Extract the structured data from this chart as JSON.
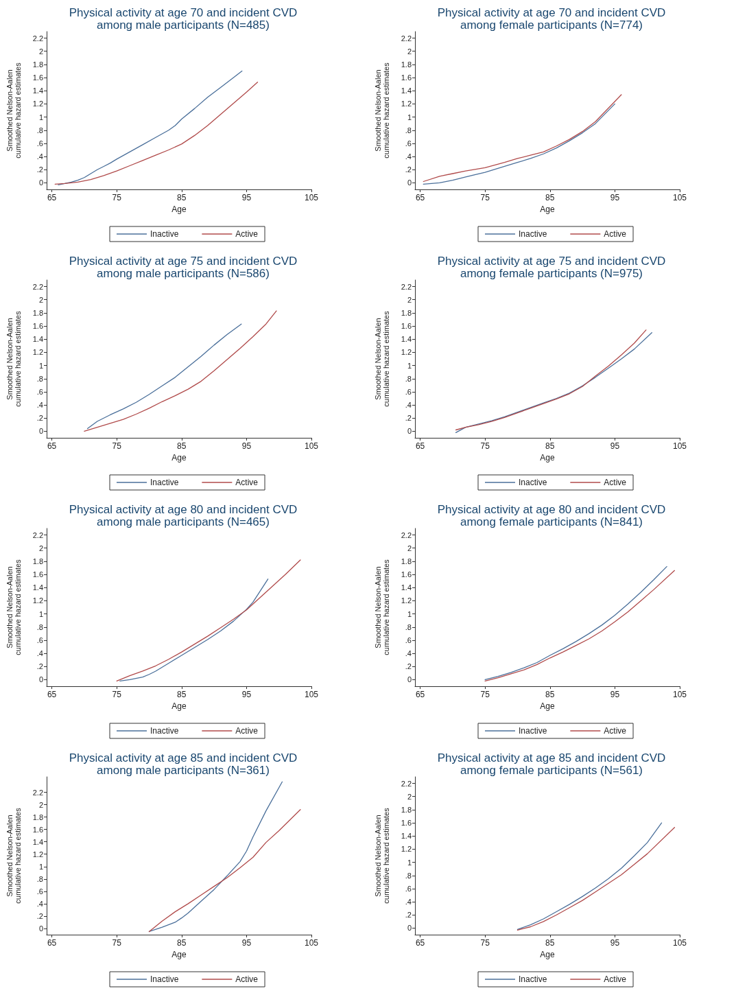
{
  "chart_data": [
    {
      "type": "line",
      "title": "Physical activity at age 70 and incident CVD\namong male participants (N=485)",
      "xlabel": "Age",
      "ylabel": "Smoothed Nelson-Aalen\ncumulative hazard estimates",
      "xlim": [
        64.2,
        105
      ],
      "xticks": [
        65,
        75,
        85,
        95,
        105
      ],
      "ylim": [
        -0.1,
        2.3
      ],
      "yticks": [
        0,
        {
          "value": 0.2,
          "label": ".2"
        },
        {
          "value": 0.4,
          "label": ".4"
        },
        {
          "value": 0.6,
          "label": ".6"
        },
        {
          "value": 0.8,
          "label": ".8"
        },
        1,
        1.2,
        1.4,
        1.6,
        1.8,
        2,
        2.2
      ],
      "grid": false,
      "legend": "bottom",
      "marker": "none",
      "line_style": "solid",
      "series": [
        {
          "name": "Inactive",
          "color": "#4a6f9a",
          "x": [
            66,
            67,
            68,
            69,
            70,
            71,
            72,
            73,
            74,
            75,
            77,
            79,
            81,
            83,
            84,
            85,
            87,
            89,
            91,
            93,
            94.3
          ],
          "values": [
            -0.03,
            -0.01,
            0.01,
            0.04,
            0.08,
            0.14,
            0.2,
            0.25,
            0.3,
            0.36,
            0.47,
            0.58,
            0.69,
            0.8,
            0.87,
            0.97,
            1.13,
            1.3,
            1.45,
            1.6,
            1.7
          ]
        },
        {
          "name": "Active",
          "color": "#b04a4a",
          "x": [
            65.5,
            67,
            69,
            71,
            73,
            75,
            77,
            79,
            81,
            83,
            85,
            87,
            89,
            91,
            93,
            95,
            96.7
          ],
          "values": [
            -0.02,
            -0.01,
            0.01,
            0.05,
            0.11,
            0.18,
            0.26,
            0.34,
            0.42,
            0.5,
            0.59,
            0.72,
            0.87,
            1.04,
            1.21,
            1.38,
            1.53
          ]
        }
      ]
    },
    {
      "type": "line",
      "title": "Physical activity at age 70 and incident CVD\namong female participants (N=774)",
      "xlabel": "Age",
      "ylabel": "Smoothed Nelson-Aalen\ncumulative hazard estimates",
      "xlim": [
        64.2,
        105
      ],
      "xticks": [
        65,
        75,
        85,
        95,
        105
      ],
      "ylim": [
        -0.1,
        2.3
      ],
      "yticks": [
        0,
        {
          "value": 0.2,
          "label": ".2"
        },
        {
          "value": 0.4,
          "label": ".4"
        },
        {
          "value": 0.6,
          "label": ".6"
        },
        {
          "value": 0.8,
          "label": ".8"
        },
        1,
        1.2,
        1.4,
        1.6,
        1.8,
        2,
        2.2
      ],
      "grid": false,
      "legend": "bottom",
      "marker": "none",
      "line_style": "solid",
      "series": [
        {
          "name": "Inactive",
          "color": "#4a6f9a",
          "x": [
            65.5,
            68,
            70,
            72,
            75,
            78,
            80,
            82,
            84,
            86,
            88,
            90,
            92,
            95
          ],
          "values": [
            -0.02,
            0,
            0.04,
            0.09,
            0.16,
            0.25,
            0.31,
            0.37,
            0.44,
            0.53,
            0.64,
            0.76,
            0.9,
            1.2
          ]
        },
        {
          "name": "Active",
          "color": "#b04a4a",
          "x": [
            65.5,
            68,
            70,
            72,
            75,
            78,
            80,
            82,
            84,
            86,
            88,
            90,
            92,
            96
          ],
          "values": [
            0.02,
            0.1,
            0.14,
            0.18,
            0.23,
            0.31,
            0.37,
            0.42,
            0.47,
            0.56,
            0.66,
            0.78,
            0.93,
            1.34
          ]
        }
      ]
    },
    {
      "type": "line",
      "title": "Physical activity at age 75 and incident CVD\namong male participants (N=586)",
      "xlabel": "Age",
      "ylabel": "Smoothed Nelson-Aalen\ncumulative hazard estimates",
      "xlim": [
        64.2,
        105
      ],
      "xticks": [
        65,
        75,
        85,
        95,
        105
      ],
      "ylim": [
        -0.1,
        2.3
      ],
      "yticks": [
        0,
        {
          "value": 0.2,
          "label": ".2"
        },
        {
          "value": 0.4,
          "label": ".4"
        },
        {
          "value": 0.6,
          "label": ".6"
        },
        {
          "value": 0.8,
          "label": ".8"
        },
        1,
        1.2,
        1.4,
        1.6,
        1.8,
        2,
        2.2
      ],
      "grid": false,
      "legend": "bottom",
      "marker": "none",
      "line_style": "solid",
      "series": [
        {
          "name": "Inactive",
          "color": "#4a6f9a",
          "x": [
            70.5,
            72,
            74,
            76,
            78,
            80,
            82,
            84,
            86,
            88,
            90,
            92,
            94.2
          ],
          "values": [
            0.04,
            0.15,
            0.25,
            0.34,
            0.44,
            0.56,
            0.69,
            0.82,
            0.98,
            1.14,
            1.31,
            1.47,
            1.63
          ]
        },
        {
          "name": "Active",
          "color": "#b04a4a",
          "x": [
            70,
            72,
            74,
            76,
            78,
            80,
            82,
            84,
            86,
            88,
            90,
            92,
            94,
            96,
            98,
            99.6
          ],
          "values": [
            0,
            0.06,
            0.12,
            0.18,
            0.26,
            0.35,
            0.45,
            0.54,
            0.64,
            0.76,
            0.92,
            1.09,
            1.26,
            1.44,
            1.63,
            1.83
          ]
        }
      ]
    },
    {
      "type": "line",
      "title": "Physical activity at age 75 and incident CVD\namong female participants (N=975)",
      "xlabel": "Age",
      "ylabel": "Smoothed Nelson-Aalen\ncumulative hazard estimates",
      "xlim": [
        64.2,
        105
      ],
      "xticks": [
        65,
        75,
        85,
        95,
        105
      ],
      "ylim": [
        -0.1,
        2.3
      ],
      "yticks": [
        0,
        {
          "value": 0.2,
          "label": ".2"
        },
        {
          "value": 0.4,
          "label": ".4"
        },
        {
          "value": 0.6,
          "label": ".6"
        },
        {
          "value": 0.8,
          "label": ".8"
        },
        1,
        1.2,
        1.4,
        1.6,
        1.8,
        2,
        2.2
      ],
      "grid": false,
      "legend": "bottom",
      "marker": "none",
      "line_style": "solid",
      "series": [
        {
          "name": "Inactive",
          "color": "#4a6f9a",
          "x": [
            70.5,
            72,
            74,
            76,
            78,
            80,
            82,
            84,
            86,
            88,
            90,
            92,
            94,
            96,
            98,
            100.7
          ],
          "values": [
            -0.02,
            0.06,
            0.11,
            0.16,
            0.22,
            0.29,
            0.36,
            0.43,
            0.5,
            0.58,
            0.69,
            0.82,
            0.96,
            1.1,
            1.25,
            1.5
          ]
        },
        {
          "name": "Active",
          "color": "#b04a4a",
          "x": [
            70.5,
            72,
            74,
            76,
            78,
            80,
            82,
            84,
            86,
            88,
            90,
            92,
            94,
            96,
            98,
            99.8
          ],
          "values": [
            0.02,
            0.06,
            0.1,
            0.15,
            0.21,
            0.28,
            0.35,
            0.42,
            0.49,
            0.57,
            0.68,
            0.84,
            0.99,
            1.16,
            1.34,
            1.54
          ]
        }
      ]
    },
    {
      "type": "line",
      "title": "Physical activity at age 80 and incident CVD\namong male participants (N=465)",
      "xlabel": "Age",
      "ylabel": "Smoothed Nelson-Aalen\ncumulative hazard estimates",
      "xlim": [
        64.2,
        105
      ],
      "xticks": [
        65,
        75,
        85,
        95,
        105
      ],
      "ylim": [
        -0.1,
        2.3
      ],
      "yticks": [
        0,
        {
          "value": 0.2,
          "label": ".2"
        },
        {
          "value": 0.4,
          "label": ".4"
        },
        {
          "value": 0.6,
          "label": ".6"
        },
        {
          "value": 0.8,
          "label": ".8"
        },
        1,
        1.2,
        1.4,
        1.6,
        1.8,
        2,
        2.2
      ],
      "grid": false,
      "legend": "bottom",
      "marker": "none",
      "line_style": "solid",
      "series": [
        {
          "name": "Inactive",
          "color": "#4a6f9a",
          "x": [
            75.5,
            77,
            79,
            80,
            81,
            83,
            85,
            87,
            89,
            91,
            93,
            95,
            96,
            98.3
          ],
          "values": [
            -0.02,
            0,
            0.04,
            0.08,
            0.13,
            0.25,
            0.37,
            0.49,
            0.61,
            0.74,
            0.89,
            1.07,
            1.18,
            1.53
          ]
        },
        {
          "name": "Active",
          "color": "#b04a4a",
          "x": [
            75,
            77,
            79,
            81,
            83,
            85,
            87,
            89,
            91,
            93,
            95,
            97,
            99,
            101,
            103.3
          ],
          "values": [
            -0.02,
            0.06,
            0.13,
            0.21,
            0.31,
            0.42,
            0.54,
            0.66,
            0.79,
            0.92,
            1.06,
            1.24,
            1.42,
            1.6,
            1.82
          ]
        }
      ]
    },
    {
      "type": "line",
      "title": "Physical activity at age 80 and incident CVD\namong female participants (N=841)",
      "xlabel": "Age",
      "ylabel": "Smoothed Nelson-Aalen\ncumulative hazard estimates",
      "xlim": [
        64.2,
        105
      ],
      "xticks": [
        65,
        75,
        85,
        95,
        105
      ],
      "ylim": [
        -0.1,
        2.3
      ],
      "yticks": [
        0,
        {
          "value": 0.2,
          "label": ".2"
        },
        {
          "value": 0.4,
          "label": ".4"
        },
        {
          "value": 0.6,
          "label": ".6"
        },
        {
          "value": 0.8,
          "label": ".8"
        },
        1,
        1.2,
        1.4,
        1.6,
        1.8,
        2,
        2.2
      ],
      "grid": false,
      "legend": "bottom",
      "marker": "none",
      "line_style": "solid",
      "series": [
        {
          "name": "Inactive",
          "color": "#4a6f9a",
          "x": [
            75,
            77,
            79,
            81,
            83,
            85,
            87,
            89,
            91,
            93,
            95,
            97,
            99,
            101,
            103
          ],
          "values": [
            0,
            0.05,
            0.11,
            0.18,
            0.26,
            0.37,
            0.47,
            0.58,
            0.7,
            0.83,
            0.98,
            1.15,
            1.33,
            1.52,
            1.72
          ]
        },
        {
          "name": "Active",
          "color": "#b04a4a",
          "x": [
            75,
            77,
            79,
            81,
            83,
            85,
            87,
            89,
            91,
            93,
            95,
            97,
            99,
            101,
            104.2
          ],
          "values": [
            -0.02,
            0.03,
            0.09,
            0.15,
            0.23,
            0.33,
            0.42,
            0.52,
            0.62,
            0.74,
            0.88,
            1.03,
            1.2,
            1.37,
            1.66
          ]
        }
      ]
    },
    {
      "type": "line",
      "title": "Physical activity at age 85 and incident CVD\namong male participants (N=361)",
      "xlabel": "Age",
      "ylabel": "Smoothed Nelson-Aalen\ncumulative hazard estimates",
      "xlim": [
        64.2,
        105
      ],
      "xticks": [
        65,
        75,
        85,
        95,
        105
      ],
      "ylim": [
        -0.1,
        2.45
      ],
      "yticks": [
        0,
        {
          "value": 0.2,
          "label": ".2"
        },
        {
          "value": 0.4,
          "label": ".4"
        },
        {
          "value": 0.6,
          "label": ".6"
        },
        {
          "value": 0.8,
          "label": ".8"
        },
        1,
        1.2,
        1.4,
        1.6,
        1.8,
        2,
        2.2
      ],
      "grid": false,
      "legend": "bottom",
      "marker": "none",
      "line_style": "solid",
      "series": [
        {
          "name": "Inactive",
          "color": "#4a6f9a",
          "x": [
            80,
            82,
            84,
            85,
            86,
            88,
            90,
            92,
            94,
            95,
            96,
            98,
            100.5
          ],
          "values": [
            -0.05,
            0.02,
            0.1,
            0.17,
            0.25,
            0.44,
            0.63,
            0.85,
            1.08,
            1.25,
            1.48,
            1.9,
            2.37
          ]
        },
        {
          "name": "Active",
          "color": "#b04a4a",
          "x": [
            80,
            82,
            84,
            86,
            88,
            90,
            92,
            94,
            96,
            98,
            100,
            103.3
          ],
          "values": [
            -0.05,
            0.12,
            0.27,
            0.4,
            0.54,
            0.68,
            0.82,
            0.98,
            1.15,
            1.39,
            1.58,
            1.92
          ]
        }
      ]
    },
    {
      "type": "line",
      "title": "Physical activity at age 85 and incident CVD\namong female participants (N=561)",
      "xlabel": "Age",
      "ylabel": "Smoothed Nelson-Aalen\ncumulative hazard estimates",
      "xlim": [
        64.2,
        105
      ],
      "xticks": [
        65,
        75,
        85,
        95,
        105
      ],
      "ylim": [
        -0.1,
        2.3
      ],
      "yticks": [
        0,
        {
          "value": 0.2,
          "label": ".2"
        },
        {
          "value": 0.4,
          "label": ".4"
        },
        {
          "value": 0.6,
          "label": ".6"
        },
        {
          "value": 0.8,
          "label": ".8"
        },
        1,
        1.2,
        1.4,
        1.6,
        1.8,
        2,
        2.2
      ],
      "grid": false,
      "legend": "bottom",
      "marker": "none",
      "line_style": "solid",
      "series": [
        {
          "name": "Inactive",
          "color": "#4a6f9a",
          "x": [
            80,
            82,
            84,
            86,
            88,
            90,
            92,
            94,
            96,
            98,
            100,
            102.2
          ],
          "values": [
            -0.02,
            0.05,
            0.14,
            0.25,
            0.36,
            0.48,
            0.61,
            0.75,
            0.91,
            1.1,
            1.3,
            1.6
          ]
        },
        {
          "name": "Active",
          "color": "#b04a4a",
          "x": [
            80,
            82,
            84,
            86,
            88,
            90,
            92,
            94,
            96,
            98,
            100,
            104.2
          ],
          "values": [
            -0.03,
            0.02,
            0.1,
            0.2,
            0.31,
            0.42,
            0.55,
            0.68,
            0.81,
            0.97,
            1.13,
            1.53
          ]
        }
      ]
    }
  ]
}
